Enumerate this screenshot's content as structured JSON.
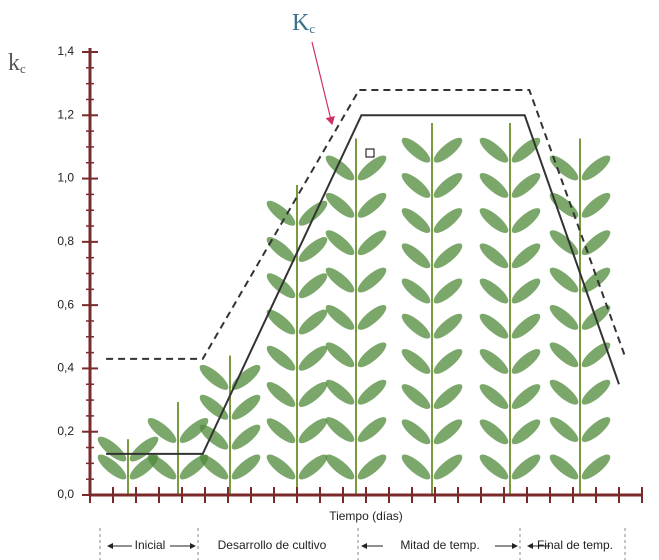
{
  "chart_data": {
    "type": "line",
    "x_label": "Tiempo (días)",
    "y_label": {
      "main": "k",
      "sub": "c"
    },
    "annotation": {
      "main": "K",
      "sub": "c"
    },
    "xlim": [
      0,
      24
    ],
    "xticks": [
      0,
      1,
      2,
      3,
      4,
      5,
      6,
      7,
      8,
      9,
      10,
      11,
      12,
      13,
      14,
      15,
      16,
      17,
      18,
      19,
      20,
      21,
      22,
      23,
      24
    ],
    "ylim": [
      0,
      1.4
    ],
    "yticks": [
      {
        "value": 0,
        "label": "0,0"
      },
      {
        "value": 0.2,
        "label": "0,2"
      },
      {
        "value": 0.4,
        "label": "0,4"
      },
      {
        "value": 0.6,
        "label": "0,6"
      },
      {
        "value": 0.8,
        "label": "0,8"
      },
      {
        "value": 1.0,
        "label": "1,0"
      },
      {
        "value": 1.2,
        "label": "1,2"
      },
      {
        "value": 1.4,
        "label": "1,4"
      }
    ],
    "series": [
      {
        "name": null,
        "color": "#333333",
        "dash": false,
        "x": [
          0.7,
          4.9,
          11.8,
          18.9,
          23.0
        ],
        "values": [
          0.13,
          0.13,
          1.2,
          1.2,
          0.35
        ]
      },
      {
        "name": null,
        "color": "#333333",
        "dash": true,
        "x": [
          0.7,
          4.9,
          11.7,
          19.1,
          23.3
        ],
        "values": [
          0.43,
          0.43,
          1.28,
          1.28,
          0.43
        ]
      }
    ],
    "stages": [
      "Inicial",
      "Desarrollo de cultivo",
      "Mitad de temp.",
      "Final de temp."
    ]
  }
}
